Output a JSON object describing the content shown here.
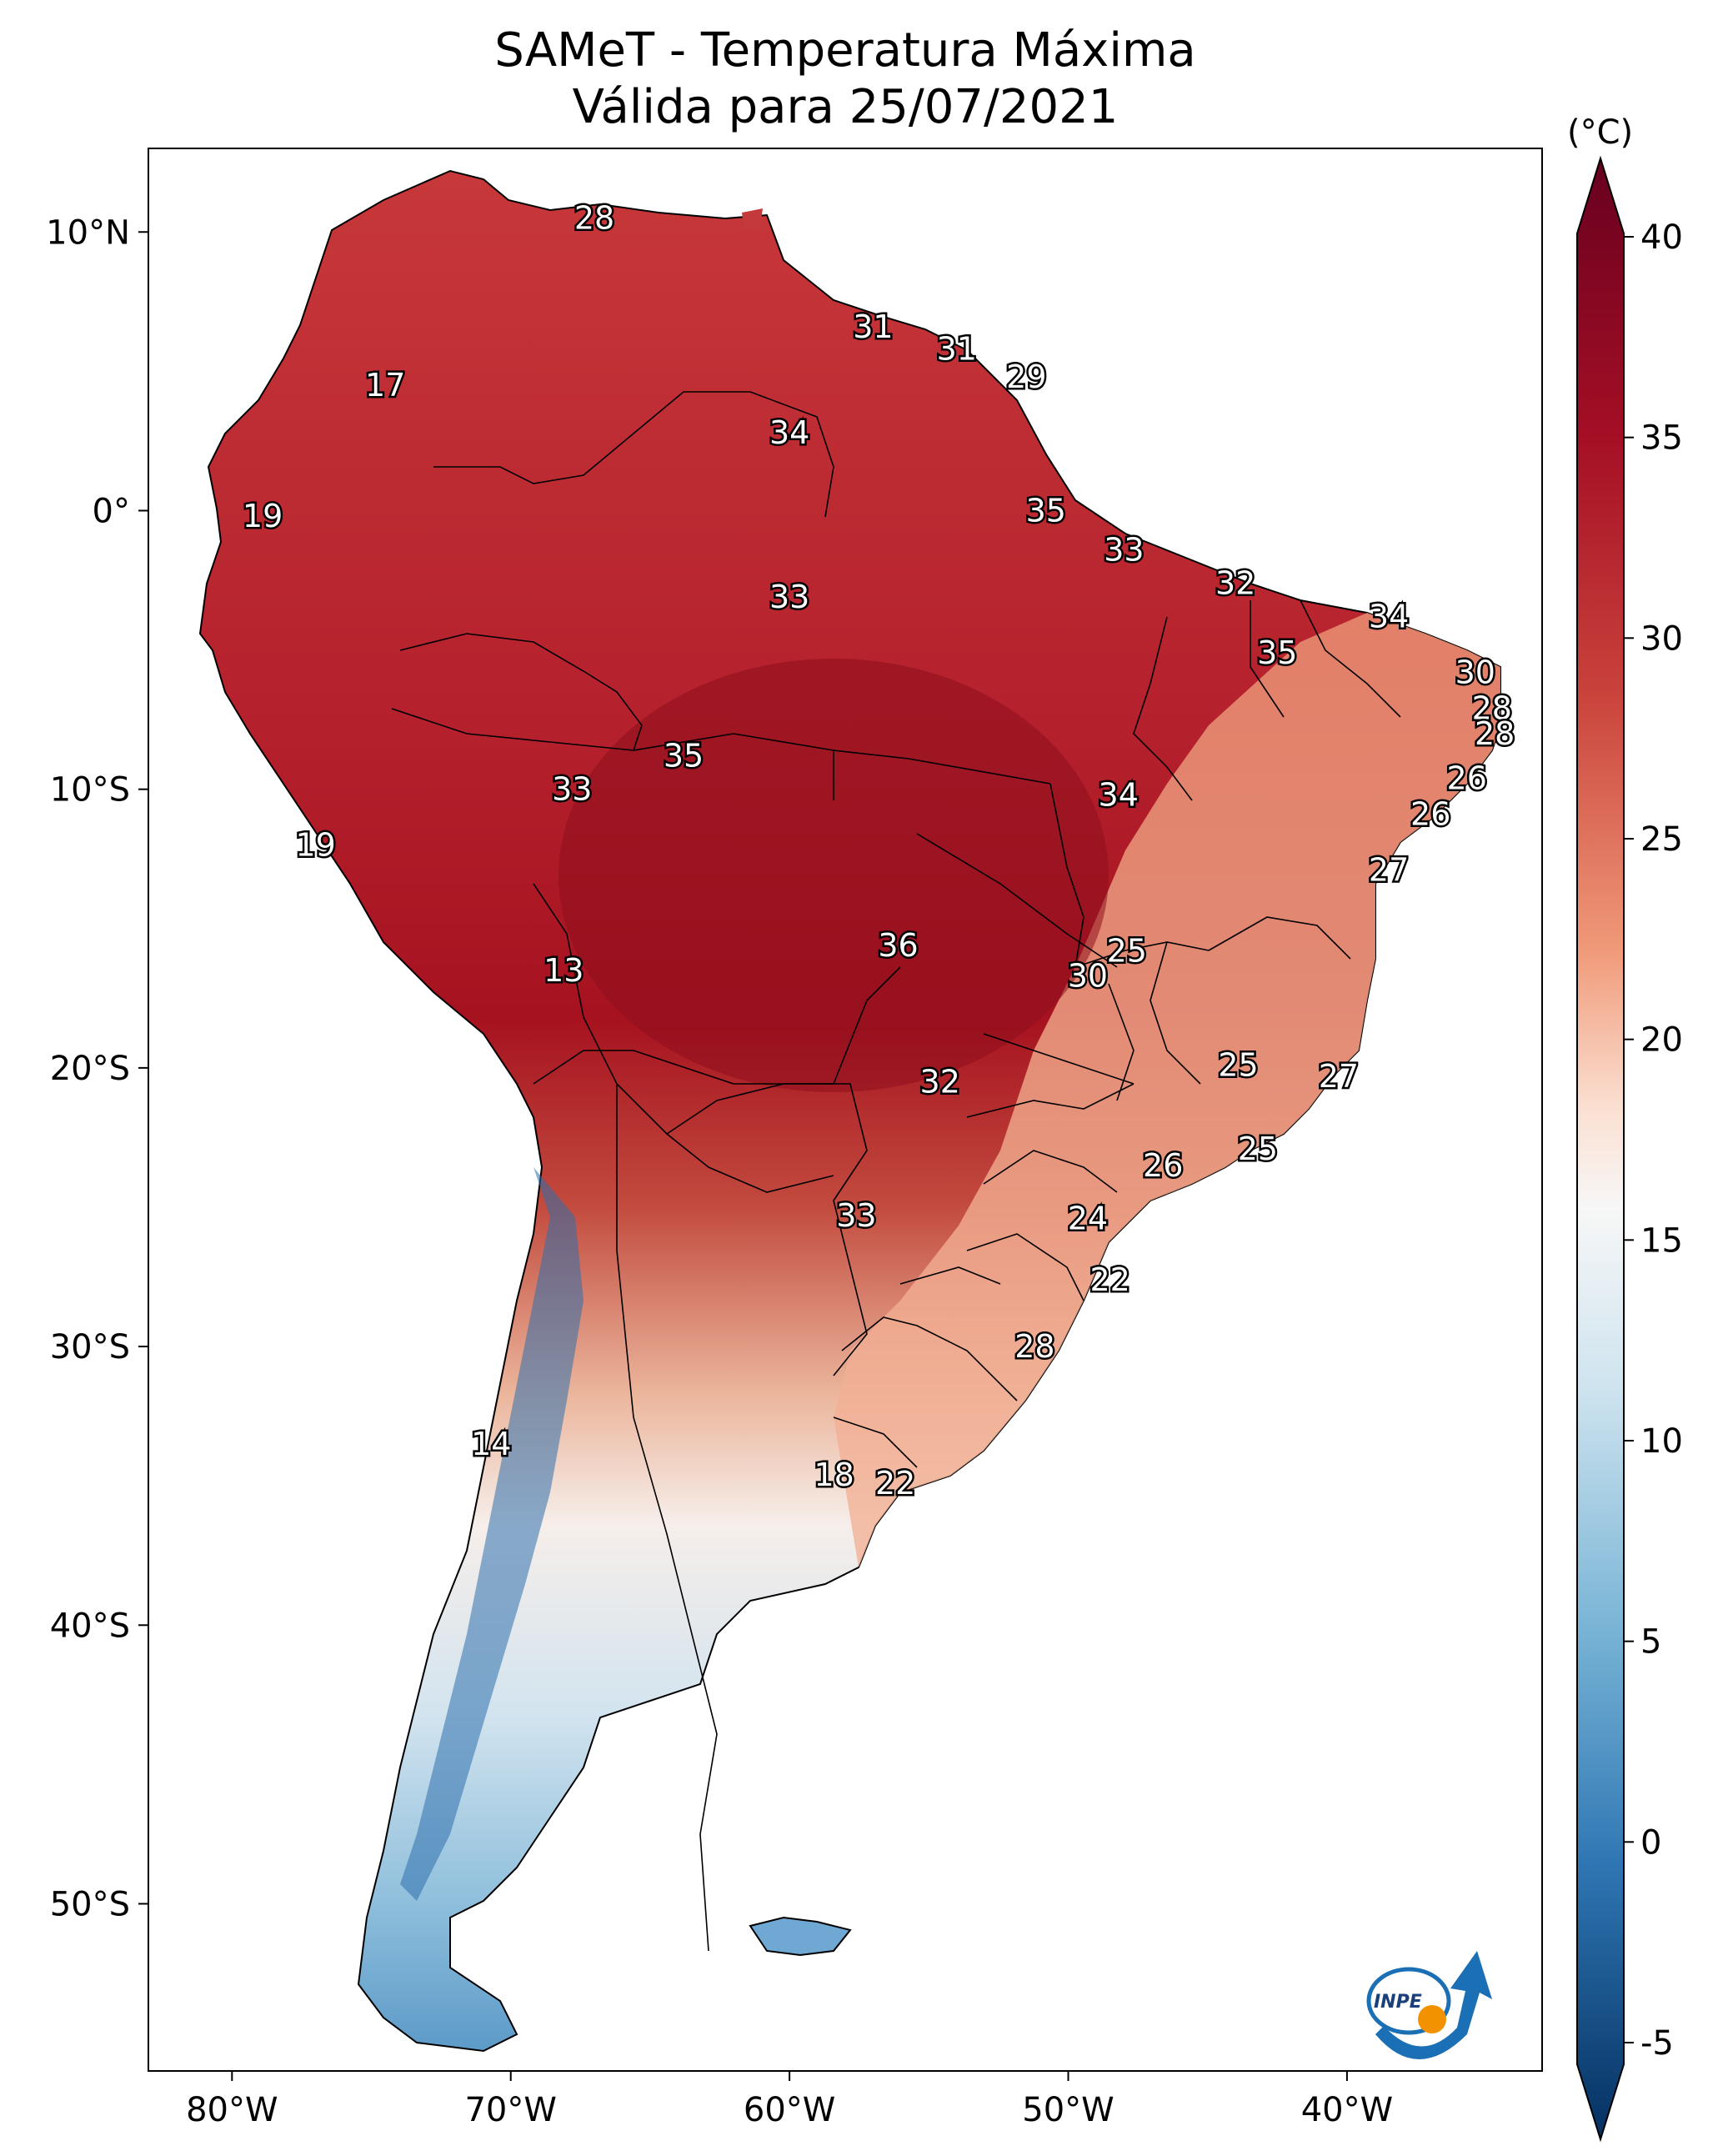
{
  "title_line1": "SAMeT - Temperatura Máxima",
  "title_line2": "Válida para 25/07/2021",
  "colorbar": {
    "unit": "(°C)",
    "ticks": [
      "40",
      "35",
      "30",
      "25",
      "20",
      "15",
      "10",
      "5",
      "0",
      "-5"
    ]
  },
  "axes": {
    "lat_labels": [
      "10°N",
      "0°",
      "10°S",
      "20°S",
      "30°S",
      "40°S",
      "50°S"
    ],
    "lon_labels": [
      "80°W",
      "70°W",
      "60°W",
      "50°W",
      "40°W"
    ]
  },
  "logo": {
    "text": "INPE"
  },
  "stations": [
    {
      "value": "28",
      "lon": -67.0,
      "lat": 10.5
    },
    {
      "value": "31",
      "lon": -57.0,
      "lat": 6.6
    },
    {
      "value": "31",
      "lon": -54.0,
      "lat": 5.8
    },
    {
      "value": "29",
      "lon": -51.5,
      "lat": 4.8
    },
    {
      "value": "17",
      "lon": -74.5,
      "lat": 4.5
    },
    {
      "value": "34",
      "lon": -60.0,
      "lat": 2.8
    },
    {
      "value": "19",
      "lon": -78.9,
      "lat": -0.2
    },
    {
      "value": "35",
      "lon": -50.8,
      "lat": 0.0
    },
    {
      "value": "33",
      "lon": -48.0,
      "lat": -1.4
    },
    {
      "value": "32",
      "lon": -44.0,
      "lat": -2.6
    },
    {
      "value": "34",
      "lon": -38.5,
      "lat": -3.8
    },
    {
      "value": "33",
      "lon": -60.0,
      "lat": -3.1
    },
    {
      "value": "35",
      "lon": -42.5,
      "lat": -5.1
    },
    {
      "value": "30",
      "lon": -35.4,
      "lat": -5.8
    },
    {
      "value": "28",
      "lon": -34.8,
      "lat": -7.1
    },
    {
      "value": "28",
      "lon": -34.7,
      "lat": -8.0
    },
    {
      "value": "35",
      "lon": -63.8,
      "lat": -8.8
    },
    {
      "value": "33",
      "lon": -67.8,
      "lat": -10.0
    },
    {
      "value": "34",
      "lon": -48.2,
      "lat": -10.2
    },
    {
      "value": "26",
      "lon": -35.7,
      "lat": -9.6
    },
    {
      "value": "26",
      "lon": -37.0,
      "lat": -10.9
    },
    {
      "value": "19",
      "lon": -77.0,
      "lat": -12.0
    },
    {
      "value": "27",
      "lon": -38.5,
      "lat": -12.9
    },
    {
      "value": "36",
      "lon": -56.1,
      "lat": -15.6
    },
    {
      "value": "25",
      "lon": -47.9,
      "lat": -15.8
    },
    {
      "value": "30",
      "lon": -49.3,
      "lat": -16.7
    },
    {
      "value": "13",
      "lon": -68.1,
      "lat": -16.5
    },
    {
      "value": "25",
      "lon": -43.9,
      "lat": -19.9
    },
    {
      "value": "32",
      "lon": -54.6,
      "lat": -20.5
    },
    {
      "value": "27",
      "lon": -40.3,
      "lat": -20.3
    },
    {
      "value": "25",
      "lon": -43.2,
      "lat": -22.9
    },
    {
      "value": "26",
      "lon": -46.6,
      "lat": -23.5
    },
    {
      "value": "33",
      "lon": -57.6,
      "lat": -25.3
    },
    {
      "value": "24",
      "lon": -49.3,
      "lat": -25.4
    },
    {
      "value": "22",
      "lon": -48.5,
      "lat": -27.6
    },
    {
      "value": "28",
      "lon": -51.2,
      "lat": -30.0
    },
    {
      "value": "14",
      "lon": -70.7,
      "lat": -33.5
    },
    {
      "value": "18",
      "lon": -58.4,
      "lat": -34.6
    },
    {
      "value": "22",
      "lon": -56.2,
      "lat": -34.9
    }
  ]
}
